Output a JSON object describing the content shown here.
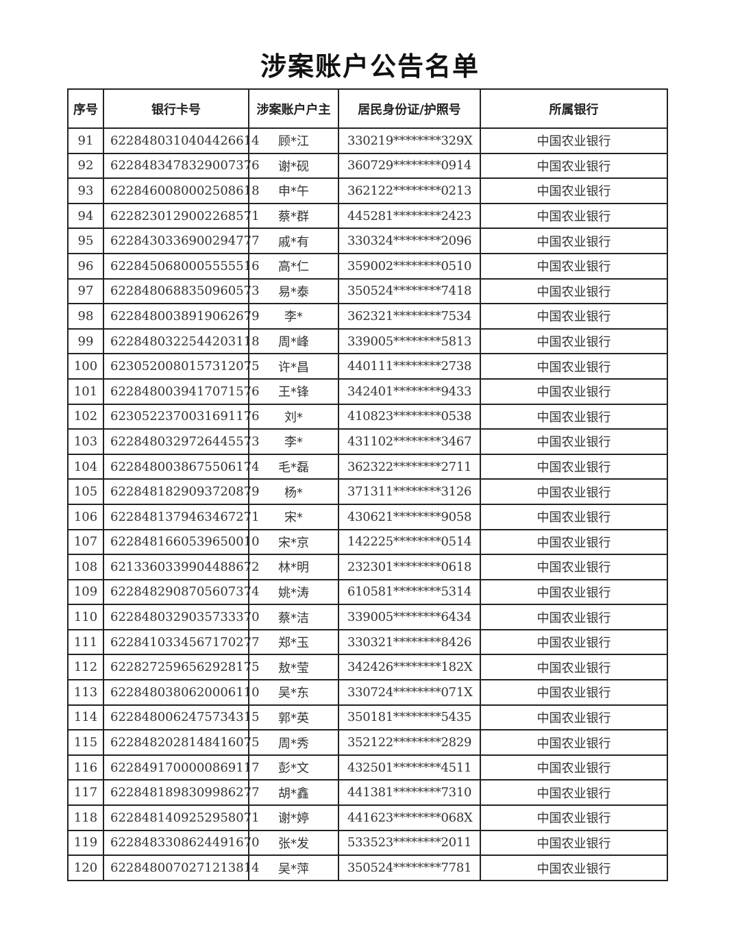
{
  "title": "涉案账户公告名单",
  "columns": [
    "序号",
    "银行卡号",
    "涉案账户户主",
    "居民身份证/护照号",
    "所属银行"
  ],
  "rows": [
    [
      "91",
      "6228480310404426614",
      "顾*江",
      "330219********329X",
      "中国农业银行"
    ],
    [
      "92",
      "6228483478329007376",
      "谢*砚",
      "360729********0914",
      "中国农业银行"
    ],
    [
      "93",
      "6228460080002508618",
      "申*午",
      "362122********0213",
      "中国农业银行"
    ],
    [
      "94",
      "6228230129002268571",
      "蔡*群",
      "445281********2423",
      "中国农业银行"
    ],
    [
      "95",
      "6228430336900294777",
      "戚*有",
      "330324********2096",
      "中国农业银行"
    ],
    [
      "96",
      "6228450680005555516",
      "高*仁",
      "359002********0510",
      "中国农业银行"
    ],
    [
      "97",
      "6228480688350960573",
      "易*泰",
      "350524********7418",
      "中国农业银行"
    ],
    [
      "98",
      "6228480038919062679",
      "李*",
      "362321********7534",
      "中国农业银行"
    ],
    [
      "99",
      "6228480322544203118",
      "周*峰",
      "339005********5813",
      "中国农业银行"
    ],
    [
      "100",
      "6230520080157312075",
      "许*昌",
      "440111********2738",
      "中国农业银行"
    ],
    [
      "101",
      "6228480039417071576",
      "王*锋",
      "342401********9433",
      "中国农业银行"
    ],
    [
      "102",
      "6230522370031691176",
      "刘*",
      "410823********0538",
      "中国农业银行"
    ],
    [
      "103",
      "6228480329726445573",
      "李*",
      "431102********3467",
      "中国农业银行"
    ],
    [
      "104",
      "6228480038675506174",
      "毛*磊",
      "362322********2711",
      "中国农业银行"
    ],
    [
      "105",
      "6228481829093720879",
      "杨*",
      "371311********3126",
      "中国农业银行"
    ],
    [
      "106",
      "6228481379463467271",
      "宋*",
      "430621********9058",
      "中国农业银行"
    ],
    [
      "107",
      "6228481660539650010",
      "宋*京",
      "142225********0514",
      "中国农业银行"
    ],
    [
      "108",
      "6213360339904488672",
      "林*明",
      "232301********0618",
      "中国农业银行"
    ],
    [
      "109",
      "6228482908705607374",
      "姚*涛",
      "610581********5314",
      "中国农业银行"
    ],
    [
      "110",
      "6228480329035733370",
      "蔡*洁",
      "339005********6434",
      "中国农业银行"
    ],
    [
      "111",
      "6228410334567170277",
      "郑*玉",
      "330321********8426",
      "中国农业银行"
    ],
    [
      "112",
      "6228272596562928175",
      "敖*莹",
      "342426********182X",
      "中国农业银行"
    ],
    [
      "113",
      "6228480380620006110",
      "吴*东",
      "330724********071X",
      "中国农业银行"
    ],
    [
      "114",
      "6228480062475734315",
      "郭*英",
      "350181********5435",
      "中国农业银行"
    ],
    [
      "115",
      "6228482028148416075",
      "周*秀",
      "352122********2829",
      "中国农业银行"
    ],
    [
      "116",
      "6228491700000869117",
      "彭*文",
      "432501********4511",
      "中国农业银行"
    ],
    [
      "117",
      "6228481898309986277",
      "胡*鑫",
      "441381********7310",
      "中国农业银行"
    ],
    [
      "118",
      "6228481409252958071",
      "谢*婷",
      "441623********068X",
      "中国农业银行"
    ],
    [
      "119",
      "6228483308624491670",
      "张*发",
      "533523********2011",
      "中国农业银行"
    ],
    [
      "120",
      "6228480070271213814",
      "吴*萍",
      "350524********7781",
      "中国农业银行"
    ]
  ]
}
